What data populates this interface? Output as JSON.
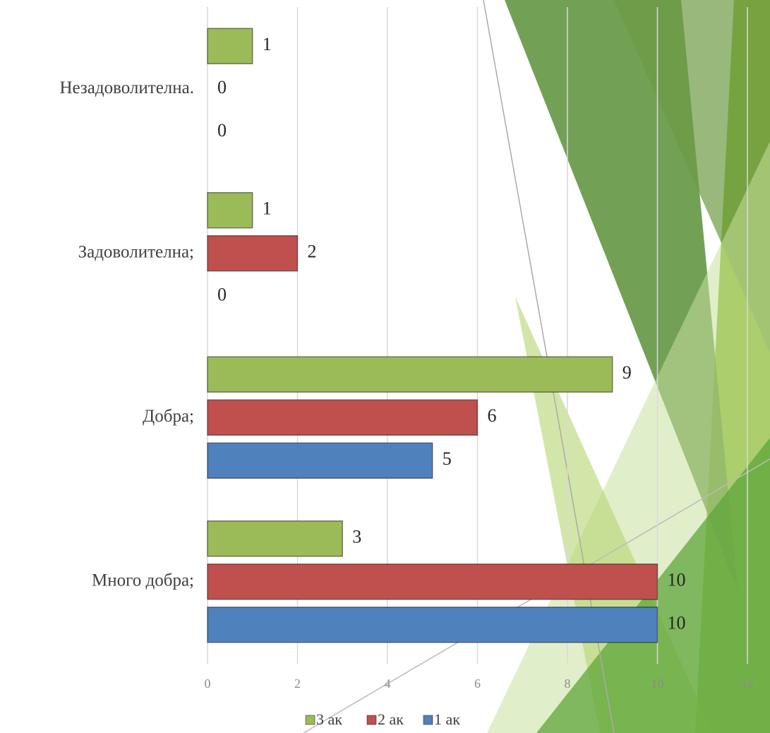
{
  "chart_data": {
    "type": "bar",
    "orientation": "horizontal",
    "categories": [
      "Незадоволителна.",
      "Задоволителна;",
      "Добра;",
      "Много добра;"
    ],
    "series": [
      {
        "name": "3 ак",
        "color": "#9bbb59",
        "values": [
          1,
          1,
          9,
          3
        ]
      },
      {
        "name": "2 ак",
        "color": "#c0504d",
        "values": [
          0,
          2,
          6,
          10
        ]
      },
      {
        "name": "1 ак",
        "color": "#4f81bd",
        "values": [
          0,
          0,
          5,
          10
        ]
      }
    ],
    "xlim": [
      0,
      12
    ],
    "xticks": [
      0,
      2,
      4,
      6,
      8,
      10,
      12
    ],
    "grid": true,
    "legend": "bottom"
  }
}
